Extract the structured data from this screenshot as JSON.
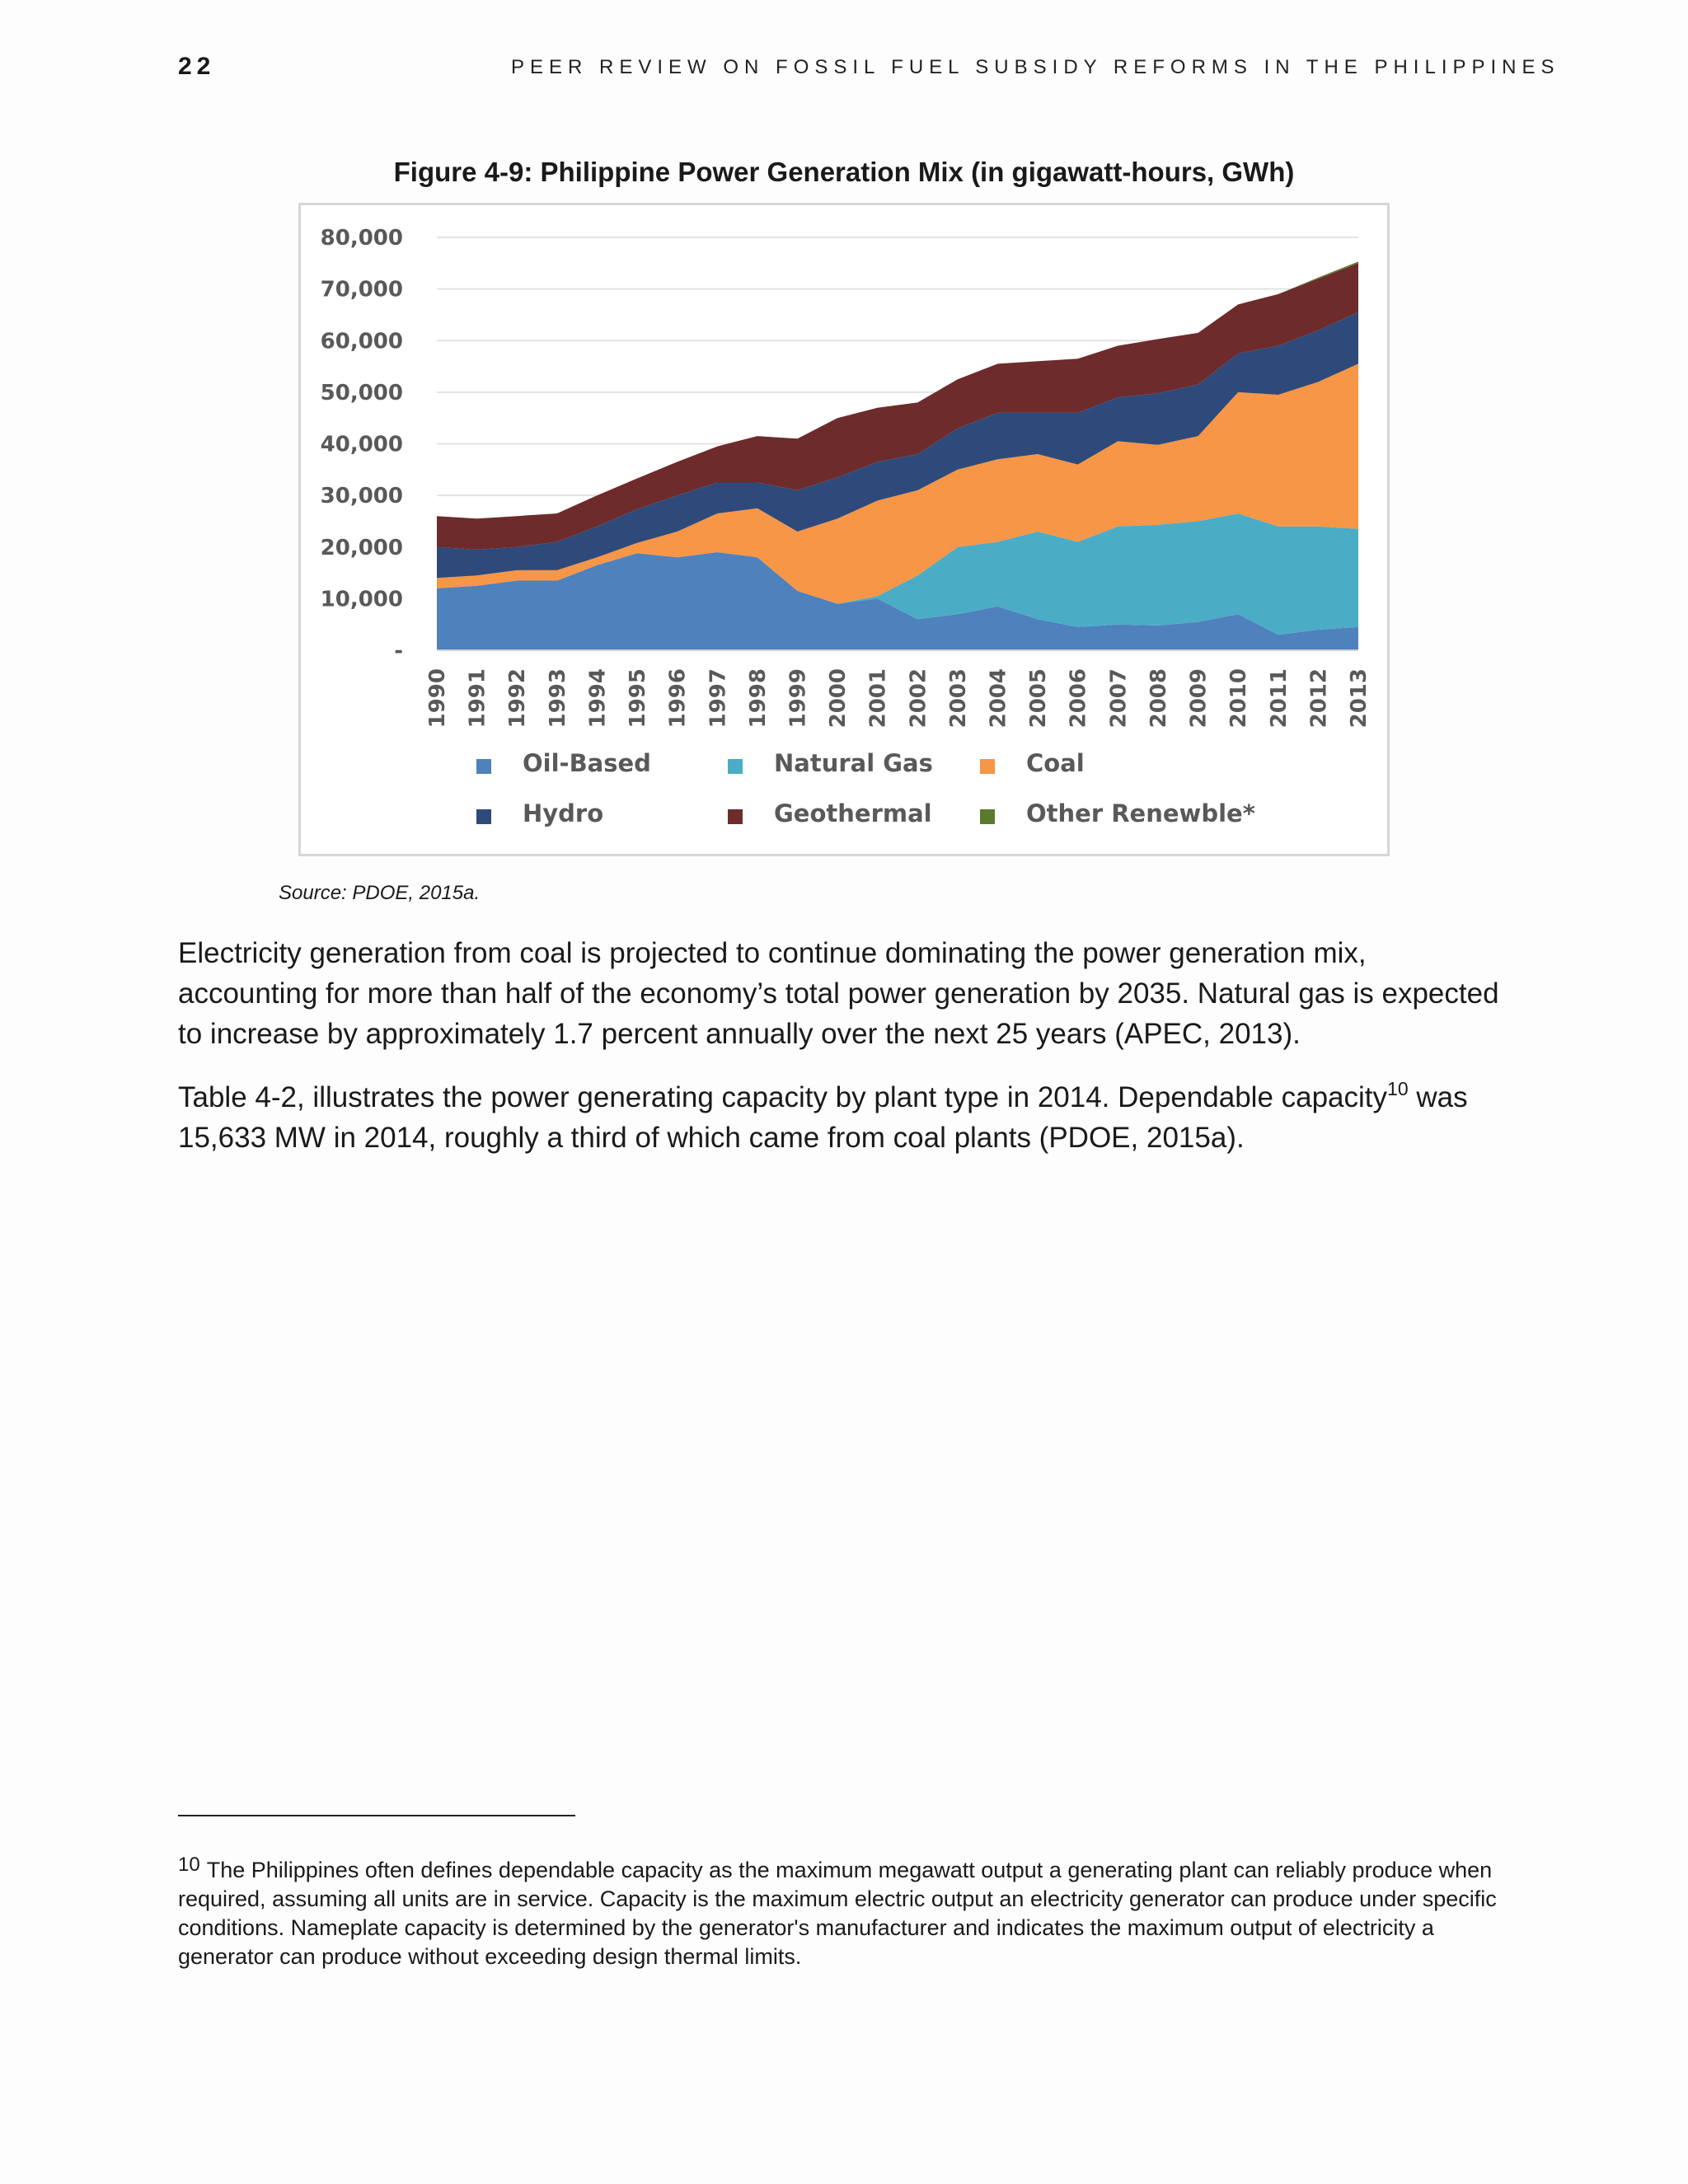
{
  "header": {
    "page_number": "22",
    "running_title": "PEER REVIEW ON FOSSIL FUEL SUBSIDY REFORMS IN THE PHILIPPINES"
  },
  "figure": {
    "title": "Figure 4-9: Philippine Power Generation Mix (in gigawatt-hours, GWh)",
    "source": "Source: PDOE, 2015a."
  },
  "chart_data": {
    "type": "area",
    "stacked": true,
    "x": [
      "1990",
      "1991",
      "1992",
      "1993",
      "1994",
      "1995",
      "1996",
      "1997",
      "1998",
      "1999",
      "2000",
      "2001",
      "2002",
      "2003",
      "2004",
      "2005",
      "2006",
      "2007",
      "2008",
      "2009",
      "2010",
      "2011",
      "2012",
      "2013"
    ],
    "y_ticks": [
      "-",
      "10,000",
      "20,000",
      "30,000",
      "40,000",
      "50,000",
      "60,000",
      "70,000",
      "80,000"
    ],
    "ylim": [
      0,
      80000
    ],
    "grid": true,
    "legend_position": "bottom",
    "series": [
      {
        "name": "Oil-Based",
        "color": "#4f81bd",
        "values": [
          12000,
          12500,
          13500,
          13500,
          16500,
          18800,
          18000,
          19000,
          18000,
          11500,
          9000,
          10000,
          6000,
          7000,
          8500,
          6000,
          4500,
          5000,
          4800,
          5500,
          7000,
          3000,
          4000,
          4500
        ]
      },
      {
        "name": "Natural Gas",
        "color": "#4bacc6",
        "values": [
          0,
          0,
          0,
          0,
          0,
          0,
          0,
          0,
          0,
          0,
          0,
          500,
          8500,
          13000,
          12500,
          17000,
          16500,
          19000,
          19500,
          19500,
          19500,
          21000,
          20000,
          19000
        ]
      },
      {
        "name": "Coal",
        "color": "#f79646",
        "values": [
          2000,
          2000,
          2000,
          2000,
          1500,
          2000,
          5000,
          7500,
          9500,
          11500,
          16500,
          18500,
          16500,
          15000,
          16000,
          15000,
          15000,
          16500,
          15500,
          16500,
          23500,
          25500,
          28000,
          32000
        ]
      },
      {
        "name": "Hydro",
        "color": "#2e4a7a",
        "values": [
          6000,
          5000,
          4500,
          5500,
          6000,
          6500,
          7000,
          6000,
          5000,
          8000,
          8000,
          7500,
          7000,
          8000,
          9000,
          8000,
          10000,
          8500,
          10000,
          10000,
          7500,
          9500,
          10000,
          10000
        ]
      },
      {
        "name": "Geothermal",
        "color": "#6e2b2b",
        "values": [
          6000,
          6000,
          6000,
          5500,
          6000,
          6000,
          6500,
          7000,
          9000,
          10000,
          11500,
          10500,
          10000,
          9500,
          9500,
          10000,
          10500,
          10000,
          10500,
          10000,
          9500,
          10000,
          10000,
          9500
        ]
      },
      {
        "name": "Other Renewble*",
        "color": "#5a7a2e",
        "values": [
          0,
          0,
          0,
          0,
          0,
          0,
          0,
          0,
          0,
          0,
          0,
          0,
          0,
          0,
          0,
          0,
          0,
          0,
          0,
          0,
          0,
          0,
          200,
          300
        ]
      }
    ]
  },
  "body": {
    "p1": "Electricity generation from coal is projected to continue dominating the power generation mix, accounting for more than half of the economy’s total power generation by 2035. Natural gas is expected to increase by approximately 1.7 percent annually over the next 25 years (APEC, 2013).",
    "p2_before": "Table 4-2, illustrates the power generating capacity by plant type in 2014. Dependable capacity",
    "p2_sup": "10",
    "p2_after": " was 15,633 MW in 2014, roughly a third of which came from coal plants (PDOE, 2015a)."
  },
  "footnote": {
    "mark": "10",
    "text": "The Philippines often defines dependable capacity as the maximum megawatt output a generating plant can reliably produce when required, assuming all units are in service. Capacity is the maximum electric output an electricity generator can produce under specific conditions. Nameplate capacity is determined by the generator's manufacturer and indicates the maximum output of electricity a generator can produce without exceeding design thermal limits."
  }
}
